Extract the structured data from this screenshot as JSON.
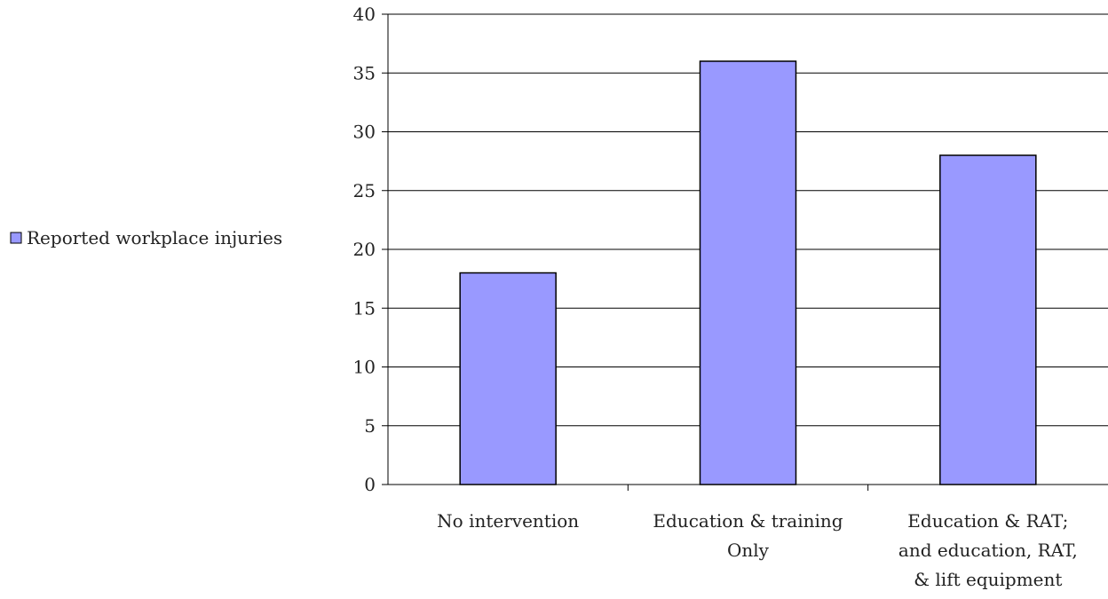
{
  "chart_data": {
    "type": "bar",
    "categories": [
      [
        "No intervention"
      ],
      [
        "Education & training",
        "Only"
      ],
      [
        "Education & RAT;",
        "and education, RAT,",
        "& lift equipment"
      ]
    ],
    "series": [
      {
        "name": "Reported workplace injuries",
        "values": [
          18,
          36,
          28
        ],
        "color": "#9999ff"
      }
    ],
    "ylim": [
      0,
      40
    ],
    "yticks": [
      0,
      5,
      10,
      15,
      20,
      25,
      30,
      35,
      40
    ],
    "grid": true,
    "legend": "left",
    "bar_stroke": "#000000"
  }
}
